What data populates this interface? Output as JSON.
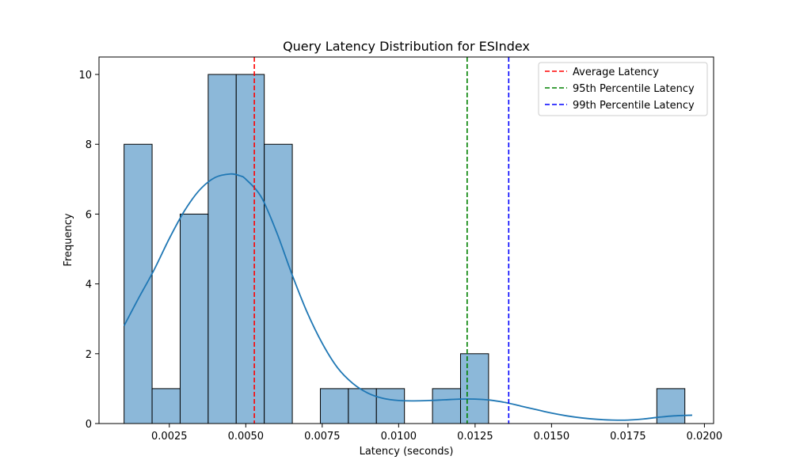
{
  "chart_data": {
    "type": "histogram",
    "title": "Query Latency Distribution for ESIndex",
    "xlabel": "Latency (seconds)",
    "ylabel": "Frequency",
    "xlim": [
      0.0002,
      0.0203
    ],
    "ylim": [
      0,
      10.5
    ],
    "xticks": [
      {
        "value": 0.0025,
        "label": "0.0025"
      },
      {
        "value": 0.005,
        "label": "0.0050"
      },
      {
        "value": 0.0075,
        "label": "0.0075"
      },
      {
        "value": 0.01,
        "label": "0.0100"
      },
      {
        "value": 0.0125,
        "label": "0.0125"
      },
      {
        "value": 0.015,
        "label": "0.0150"
      },
      {
        "value": 0.0175,
        "label": "0.0175"
      },
      {
        "value": 0.02,
        "label": "0.0200"
      }
    ],
    "yticks": [
      {
        "value": 0,
        "label": "0"
      },
      {
        "value": 2,
        "label": "2"
      },
      {
        "value": 4,
        "label": "4"
      },
      {
        "value": 6,
        "label": "6"
      },
      {
        "value": 8,
        "label": "8"
      },
      {
        "value": 10,
        "label": "10"
      }
    ],
    "bin_start": 0.00102,
    "bin_width": 0.000917,
    "counts": [
      8,
      1,
      6,
      10,
      10,
      8,
      0,
      1,
      1,
      1,
      0,
      1,
      2,
      0,
      0,
      0,
      0,
      0,
      0,
      1
    ],
    "bar_color": "#8cb8d9",
    "bar_edge_color": "#000000",
    "kde": {
      "color": "#1f77b4",
      "x": [
        0.00102,
        0.0015,
        0.002,
        0.0025,
        0.003,
        0.0035,
        0.004,
        0.0045,
        0.0048,
        0.005,
        0.0055,
        0.006,
        0.0065,
        0.007,
        0.0075,
        0.008,
        0.0085,
        0.009,
        0.0095,
        0.01,
        0.0105,
        0.011,
        0.0115,
        0.012,
        0.0125,
        0.013,
        0.0135,
        0.014,
        0.0145,
        0.015,
        0.0155,
        0.016,
        0.0165,
        0.017,
        0.0175,
        0.018,
        0.0185,
        0.019,
        0.0196
      ],
      "y": [
        2.8,
        3.6,
        4.4,
        5.3,
        6.1,
        6.7,
        7.05,
        7.15,
        7.1,
        7.0,
        6.5,
        5.5,
        4.3,
        3.2,
        2.3,
        1.6,
        1.15,
        0.87,
        0.72,
        0.66,
        0.65,
        0.66,
        0.68,
        0.7,
        0.7,
        0.67,
        0.6,
        0.5,
        0.4,
        0.3,
        0.22,
        0.16,
        0.12,
        0.1,
        0.1,
        0.13,
        0.18,
        0.22,
        0.24
      ]
    },
    "vlines": [
      {
        "name": "Average Latency",
        "x": 0.00528,
        "color": "#ff0000"
      },
      {
        "name": "95th Percentile Latency",
        "x": 0.01224,
        "color": "#008000"
      },
      {
        "name": "99th Percentile Latency",
        "x": 0.0136,
        "color": "#0000ff"
      }
    ],
    "legend_position": "top-right",
    "grid": false
  }
}
